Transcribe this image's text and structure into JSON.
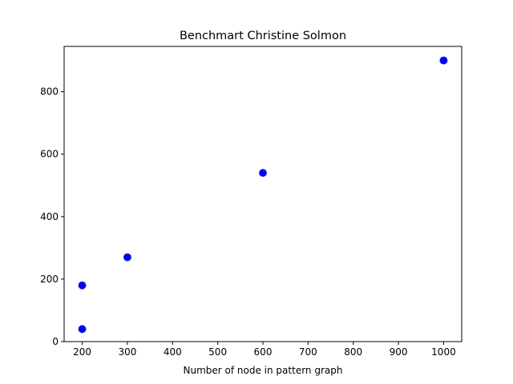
{
  "chart_data": {
    "type": "scatter",
    "title": "Benchmart Christine Solmon",
    "xlabel": "Number of node in pattern graph",
    "ylabel": "",
    "xlim": [
      160,
      1040
    ],
    "ylim": [
      0,
      945
    ],
    "xticks": [
      200,
      300,
      400,
      500,
      600,
      700,
      800,
      900,
      1000
    ],
    "yticks": [
      0,
      200,
      400,
      600,
      800
    ],
    "grid": false,
    "marker_color": "#0000ff",
    "marker_edge_color": "#1f2dbf",
    "points": [
      {
        "x": 200,
        "y": 40
      },
      {
        "x": 200,
        "y": 180
      },
      {
        "x": 300,
        "y": 270
      },
      {
        "x": 600,
        "y": 540
      },
      {
        "x": 1000,
        "y": 900
      }
    ]
  }
}
